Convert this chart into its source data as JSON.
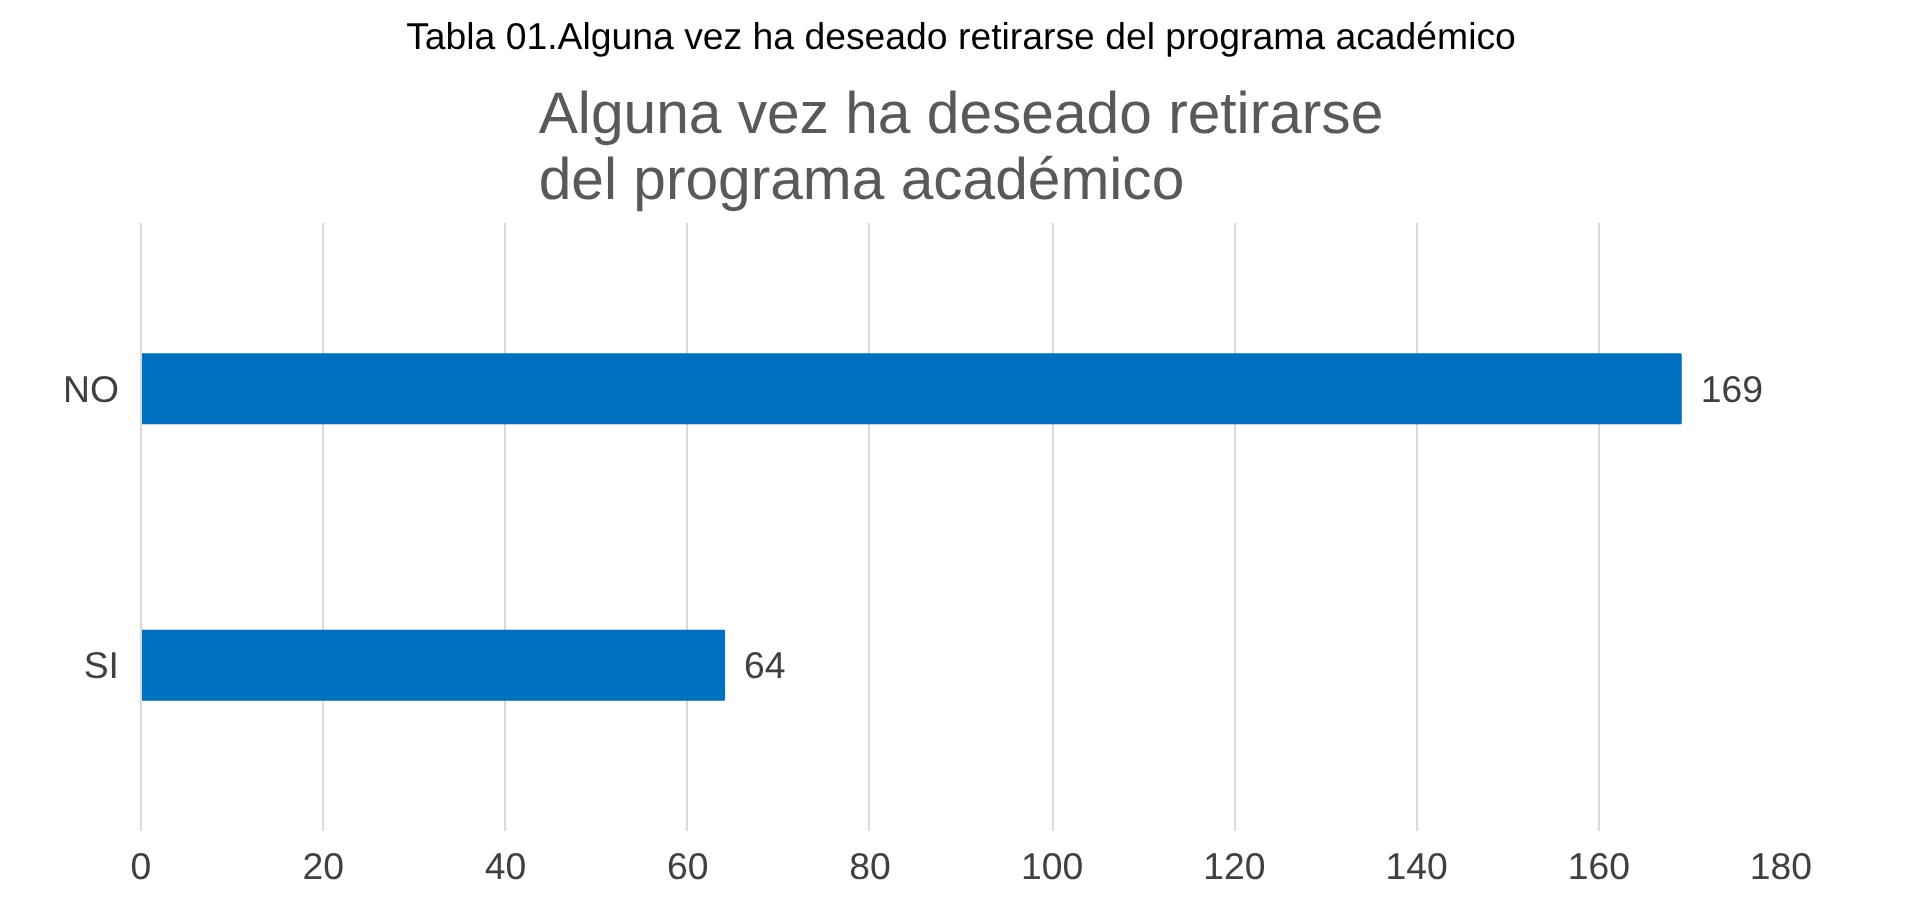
{
  "chart_data": {
    "type": "bar",
    "orientation": "horizontal",
    "title": "Alguna vez ha deseado retirarse del programa académico",
    "annotations": [
      "Tabla 01.Alguna vez ha deseado retirarse del programa académico"
    ],
    "categories": [
      "NO",
      "SI"
    ],
    "values": [
      169,
      64
    ],
    "color": "#0070c0",
    "xlim": [
      0,
      180
    ],
    "xticks": [
      0,
      20,
      40,
      60,
      80,
      100,
      120,
      140,
      160,
      180
    ],
    "grid": "x",
    "data_labels": true
  }
}
